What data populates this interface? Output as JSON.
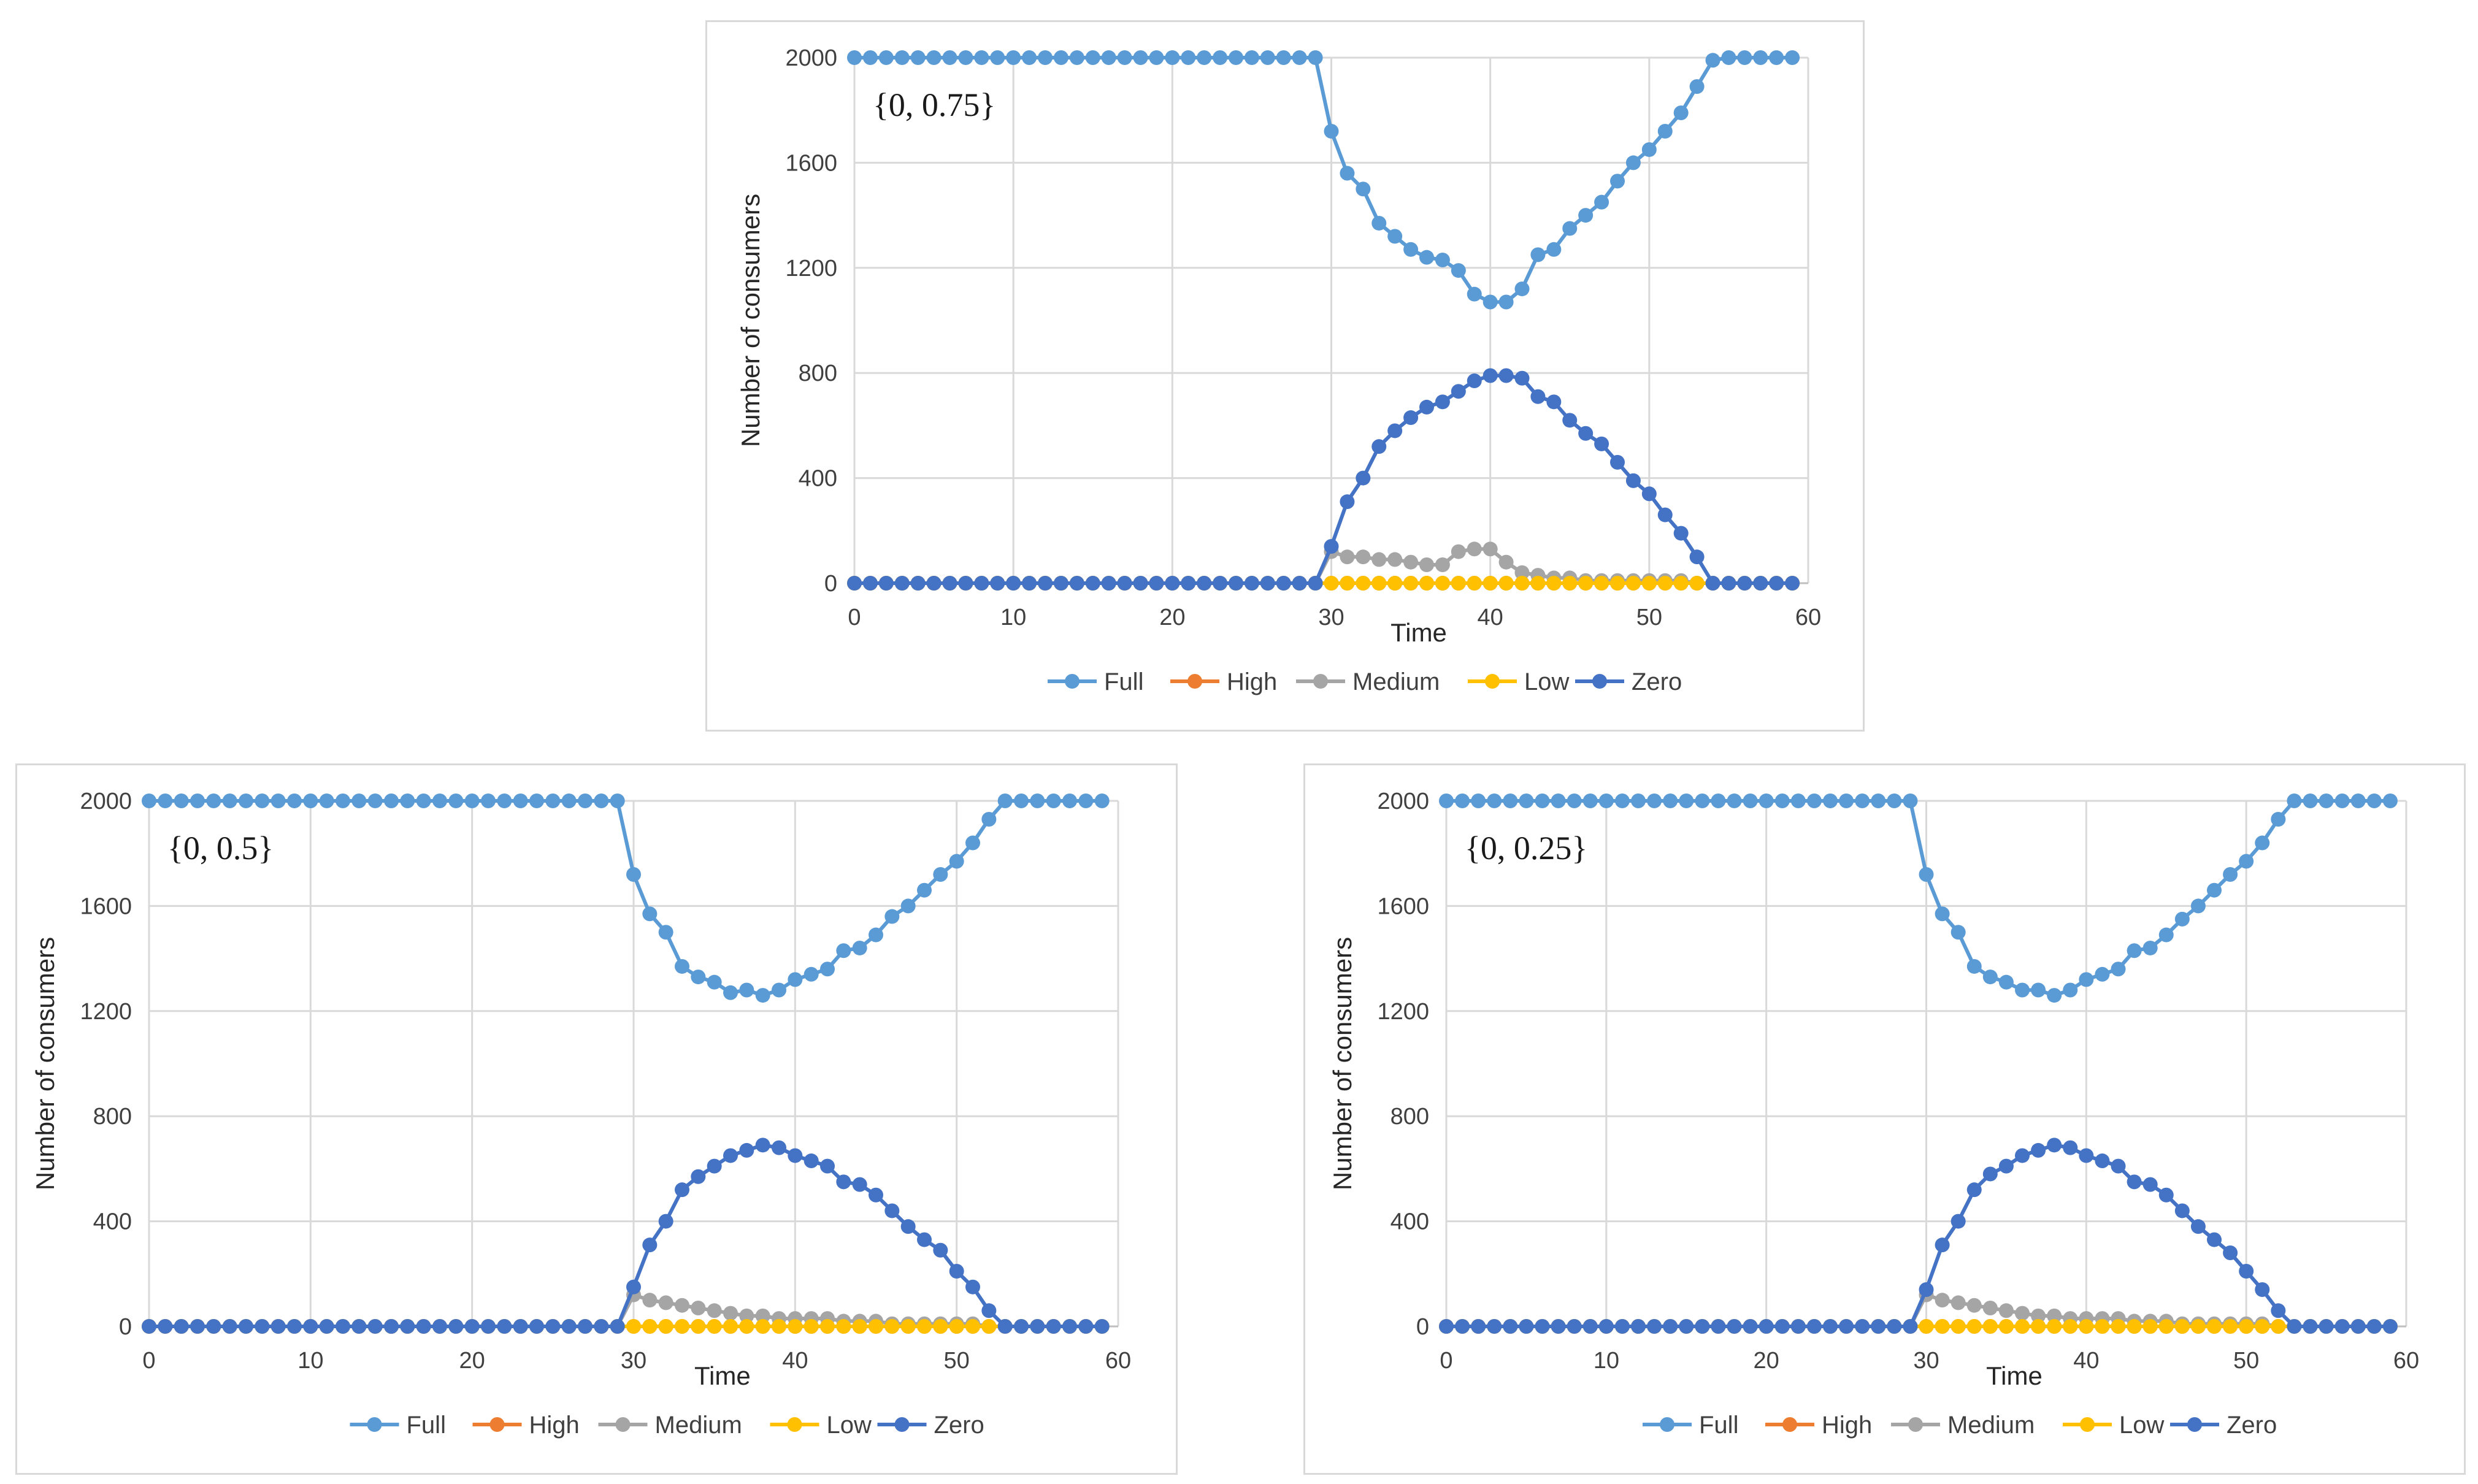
{
  "colors": {
    "Full": "#5b9bd5",
    "High": "#ed7d31",
    "Medium": "#a5a5a5",
    "Low": "#ffc000",
    "Zero": "#4472c4",
    "grid": "#d9d9d9",
    "axis": "#bfbfbf"
  },
  "chart_data": [
    {
      "type": "line",
      "annotation": "{0, 0.75}",
      "xlabel": "Time",
      "ylabel": "Number of consumers",
      "xlim": [
        0,
        60
      ],
      "ylim": [
        0,
        2000
      ],
      "x_ticks": [
        0,
        10,
        20,
        30,
        40,
        50,
        60
      ],
      "y_ticks": [
        0,
        400,
        800,
        1200,
        1600,
        2000
      ],
      "grid": true,
      "legend_position": "bottom",
      "legend": [
        "Full",
        "High",
        "Medium",
        "Low",
        "Zero"
      ],
      "x": [
        0,
        1,
        2,
        3,
        4,
        5,
        6,
        7,
        8,
        9,
        10,
        11,
        12,
        13,
        14,
        15,
        16,
        17,
        18,
        19,
        20,
        21,
        22,
        23,
        24,
        25,
        26,
        27,
        28,
        29,
        30,
        31,
        32,
        33,
        34,
        35,
        36,
        37,
        38,
        39,
        40,
        41,
        42,
        43,
        44,
        45,
        46,
        47,
        48,
        49,
        50,
        51,
        52,
        53,
        54,
        55,
        56,
        57,
        58,
        59
      ],
      "series": [
        {
          "name": "Full",
          "values": [
            2000,
            2000,
            2000,
            2000,
            2000,
            2000,
            2000,
            2000,
            2000,
            2000,
            2000,
            2000,
            2000,
            2000,
            2000,
            2000,
            2000,
            2000,
            2000,
            2000,
            2000,
            2000,
            2000,
            2000,
            2000,
            2000,
            2000,
            2000,
            2000,
            2000,
            1720,
            1560,
            1500,
            1370,
            1320,
            1270,
            1240,
            1230,
            1190,
            1100,
            1070,
            1070,
            1120,
            1250,
            1270,
            1350,
            1400,
            1450,
            1530,
            1600,
            1650,
            1720,
            1790,
            1890,
            1990,
            2000,
            2000,
            2000,
            2000,
            2000
          ]
        },
        {
          "name": "High",
          "values": [
            0,
            0,
            0,
            0,
            0,
            0,
            0,
            0,
            0,
            0,
            0,
            0,
            0,
            0,
            0,
            0,
            0,
            0,
            0,
            0,
            0,
            0,
            0,
            0,
            0,
            0,
            0,
            0,
            0,
            0,
            0,
            0,
            0,
            0,
            0,
            0,
            0,
            0,
            0,
            0,
            0,
            0,
            0,
            0,
            0,
            0,
            0,
            0,
            0,
            0,
            0,
            0,
            0,
            0,
            0,
            0,
            0,
            0,
            0,
            0
          ]
        },
        {
          "name": "Medium",
          "values": [
            0,
            0,
            0,
            0,
            0,
            0,
            0,
            0,
            0,
            0,
            0,
            0,
            0,
            0,
            0,
            0,
            0,
            0,
            0,
            0,
            0,
            0,
            0,
            0,
            0,
            0,
            0,
            0,
            0,
            0,
            120,
            100,
            100,
            90,
            90,
            80,
            70,
            70,
            120,
            130,
            130,
            80,
            40,
            30,
            20,
            20,
            10,
            10,
            10,
            10,
            10,
            10,
            10,
            0,
            0,
            0,
            0,
            0,
            0,
            0
          ]
        },
        {
          "name": "Low",
          "values": [
            0,
            0,
            0,
            0,
            0,
            0,
            0,
            0,
            0,
            0,
            0,
            0,
            0,
            0,
            0,
            0,
            0,
            0,
            0,
            0,
            0,
            0,
            0,
            0,
            0,
            0,
            0,
            0,
            0,
            0,
            0,
            0,
            0,
            0,
            0,
            0,
            0,
            0,
            0,
            0,
            0,
            0,
            0,
            0,
            0,
            0,
            0,
            0,
            0,
            0,
            0,
            0,
            0,
            0,
            0,
            0,
            0,
            0,
            0,
            0
          ]
        },
        {
          "name": "Zero",
          "values": [
            0,
            0,
            0,
            0,
            0,
            0,
            0,
            0,
            0,
            0,
            0,
            0,
            0,
            0,
            0,
            0,
            0,
            0,
            0,
            0,
            0,
            0,
            0,
            0,
            0,
            0,
            0,
            0,
            0,
            0,
            140,
            310,
            400,
            520,
            580,
            630,
            670,
            690,
            730,
            770,
            790,
            790,
            780,
            710,
            690,
            620,
            570,
            530,
            460,
            390,
            340,
            260,
            190,
            100,
            0,
            0,
            0,
            0,
            0,
            0
          ]
        }
      ]
    },
    {
      "type": "line",
      "annotation": "{0, 0.5}",
      "xlabel": "Time",
      "ylabel": "Number of consumers",
      "xlim": [
        0,
        60
      ],
      "ylim": [
        0,
        2000
      ],
      "x_ticks": [
        0,
        10,
        20,
        30,
        40,
        50,
        60
      ],
      "y_ticks": [
        0,
        400,
        800,
        1200,
        1600,
        2000
      ],
      "grid": true,
      "legend_position": "bottom",
      "legend": [
        "Full",
        "High",
        "Medium",
        "Low",
        "Zero"
      ],
      "x": [
        0,
        1,
        2,
        3,
        4,
        5,
        6,
        7,
        8,
        9,
        10,
        11,
        12,
        13,
        14,
        15,
        16,
        17,
        18,
        19,
        20,
        21,
        22,
        23,
        24,
        25,
        26,
        27,
        28,
        29,
        30,
        31,
        32,
        33,
        34,
        35,
        36,
        37,
        38,
        39,
        40,
        41,
        42,
        43,
        44,
        45,
        46,
        47,
        48,
        49,
        50,
        51,
        52,
        53,
        54,
        55,
        56,
        57,
        58,
        59
      ],
      "series": [
        {
          "name": "Full",
          "values": [
            2000,
            2000,
            2000,
            2000,
            2000,
            2000,
            2000,
            2000,
            2000,
            2000,
            2000,
            2000,
            2000,
            2000,
            2000,
            2000,
            2000,
            2000,
            2000,
            2000,
            2000,
            2000,
            2000,
            2000,
            2000,
            2000,
            2000,
            2000,
            2000,
            2000,
            1720,
            1570,
            1500,
            1370,
            1330,
            1310,
            1270,
            1280,
            1260,
            1280,
            1320,
            1340,
            1360,
            1430,
            1440,
            1490,
            1560,
            1600,
            1660,
            1720,
            1770,
            1840,
            1930,
            2000,
            2000,
            2000,
            2000,
            2000,
            2000,
            2000
          ]
        },
        {
          "name": "High",
          "values": [
            0,
            0,
            0,
            0,
            0,
            0,
            0,
            0,
            0,
            0,
            0,
            0,
            0,
            0,
            0,
            0,
            0,
            0,
            0,
            0,
            0,
            0,
            0,
            0,
            0,
            0,
            0,
            0,
            0,
            0,
            0,
            0,
            0,
            0,
            0,
            0,
            0,
            0,
            0,
            0,
            0,
            0,
            0,
            0,
            0,
            0,
            0,
            0,
            0,
            0,
            0,
            0,
            0,
            0,
            0,
            0,
            0,
            0,
            0,
            0
          ]
        },
        {
          "name": "Medium",
          "values": [
            0,
            0,
            0,
            0,
            0,
            0,
            0,
            0,
            0,
            0,
            0,
            0,
            0,
            0,
            0,
            0,
            0,
            0,
            0,
            0,
            0,
            0,
            0,
            0,
            0,
            0,
            0,
            0,
            0,
            0,
            120,
            100,
            90,
            80,
            70,
            60,
            50,
            40,
            40,
            30,
            30,
            30,
            30,
            20,
            20,
            20,
            10,
            10,
            10,
            10,
            10,
            10,
            0,
            0,
            0,
            0,
            0,
            0,
            0,
            0
          ]
        },
        {
          "name": "Low",
          "values": [
            0,
            0,
            0,
            0,
            0,
            0,
            0,
            0,
            0,
            0,
            0,
            0,
            0,
            0,
            0,
            0,
            0,
            0,
            0,
            0,
            0,
            0,
            0,
            0,
            0,
            0,
            0,
            0,
            0,
            0,
            0,
            0,
            0,
            0,
            0,
            0,
            0,
            0,
            0,
            0,
            0,
            0,
            0,
            0,
            0,
            0,
            0,
            0,
            0,
            0,
            0,
            0,
            0,
            0,
            0,
            0,
            0,
            0,
            0,
            0
          ]
        },
        {
          "name": "Zero",
          "values": [
            0,
            0,
            0,
            0,
            0,
            0,
            0,
            0,
            0,
            0,
            0,
            0,
            0,
            0,
            0,
            0,
            0,
            0,
            0,
            0,
            0,
            0,
            0,
            0,
            0,
            0,
            0,
            0,
            0,
            0,
            150,
            310,
            400,
            520,
            570,
            610,
            650,
            670,
            690,
            680,
            650,
            630,
            610,
            550,
            540,
            500,
            440,
            380,
            330,
            290,
            210,
            150,
            60,
            0,
            0,
            0,
            0,
            0,
            0,
            0
          ]
        }
      ]
    },
    {
      "type": "line",
      "annotation": "{0, 0.25}",
      "xlabel": "Time",
      "ylabel": "Number of consumers",
      "xlim": [
        0,
        60
      ],
      "ylim": [
        0,
        2000
      ],
      "x_ticks": [
        0,
        10,
        20,
        30,
        40,
        50,
        60
      ],
      "y_ticks": [
        0,
        400,
        800,
        1200,
        1600,
        2000
      ],
      "grid": true,
      "legend_position": "bottom",
      "legend": [
        "Full",
        "High",
        "Medium",
        "Low",
        "Zero"
      ],
      "x": [
        0,
        1,
        2,
        3,
        4,
        5,
        6,
        7,
        8,
        9,
        10,
        11,
        12,
        13,
        14,
        15,
        16,
        17,
        18,
        19,
        20,
        21,
        22,
        23,
        24,
        25,
        26,
        27,
        28,
        29,
        30,
        31,
        32,
        33,
        34,
        35,
        36,
        37,
        38,
        39,
        40,
        41,
        42,
        43,
        44,
        45,
        46,
        47,
        48,
        49,
        50,
        51,
        52,
        53,
        54,
        55,
        56,
        57,
        58,
        59
      ],
      "series": [
        {
          "name": "Full",
          "values": [
            2000,
            2000,
            2000,
            2000,
            2000,
            2000,
            2000,
            2000,
            2000,
            2000,
            2000,
            2000,
            2000,
            2000,
            2000,
            2000,
            2000,
            2000,
            2000,
            2000,
            2000,
            2000,
            2000,
            2000,
            2000,
            2000,
            2000,
            2000,
            2000,
            2000,
            1720,
            1570,
            1500,
            1370,
            1330,
            1310,
            1280,
            1280,
            1260,
            1280,
            1320,
            1340,
            1360,
            1430,
            1440,
            1490,
            1550,
            1600,
            1660,
            1720,
            1770,
            1840,
            1930,
            2000,
            2000,
            2000,
            2000,
            2000,
            2000,
            2000
          ]
        },
        {
          "name": "High",
          "values": [
            0,
            0,
            0,
            0,
            0,
            0,
            0,
            0,
            0,
            0,
            0,
            0,
            0,
            0,
            0,
            0,
            0,
            0,
            0,
            0,
            0,
            0,
            0,
            0,
            0,
            0,
            0,
            0,
            0,
            0,
            0,
            0,
            0,
            0,
            0,
            0,
            0,
            0,
            0,
            0,
            0,
            0,
            0,
            0,
            0,
            0,
            0,
            0,
            0,
            0,
            0,
            0,
            0,
            0,
            0,
            0,
            0,
            0,
            0,
            0
          ]
        },
        {
          "name": "Medium",
          "values": [
            0,
            0,
            0,
            0,
            0,
            0,
            0,
            0,
            0,
            0,
            0,
            0,
            0,
            0,
            0,
            0,
            0,
            0,
            0,
            0,
            0,
            0,
            0,
            0,
            0,
            0,
            0,
            0,
            0,
            0,
            120,
            100,
            90,
            80,
            70,
            60,
            50,
            40,
            40,
            30,
            30,
            30,
            30,
            20,
            20,
            20,
            10,
            10,
            10,
            10,
            10,
            10,
            0,
            0,
            0,
            0,
            0,
            0,
            0,
            0
          ]
        },
        {
          "name": "Low",
          "values": [
            0,
            0,
            0,
            0,
            0,
            0,
            0,
            0,
            0,
            0,
            0,
            0,
            0,
            0,
            0,
            0,
            0,
            0,
            0,
            0,
            0,
            0,
            0,
            0,
            0,
            0,
            0,
            0,
            0,
            0,
            0,
            0,
            0,
            0,
            0,
            0,
            0,
            0,
            0,
            0,
            0,
            0,
            0,
            0,
            0,
            0,
            0,
            0,
            0,
            0,
            0,
            0,
            0,
            0,
            0,
            0,
            0,
            0,
            0,
            0
          ]
        },
        {
          "name": "Zero",
          "values": [
            0,
            0,
            0,
            0,
            0,
            0,
            0,
            0,
            0,
            0,
            0,
            0,
            0,
            0,
            0,
            0,
            0,
            0,
            0,
            0,
            0,
            0,
            0,
            0,
            0,
            0,
            0,
            0,
            0,
            0,
            140,
            310,
            400,
            520,
            580,
            610,
            650,
            670,
            690,
            680,
            650,
            630,
            610,
            550,
            540,
            500,
            440,
            380,
            330,
            280,
            210,
            140,
            60,
            0,
            0,
            0,
            0,
            0,
            0,
            0
          ]
        }
      ]
    }
  ]
}
